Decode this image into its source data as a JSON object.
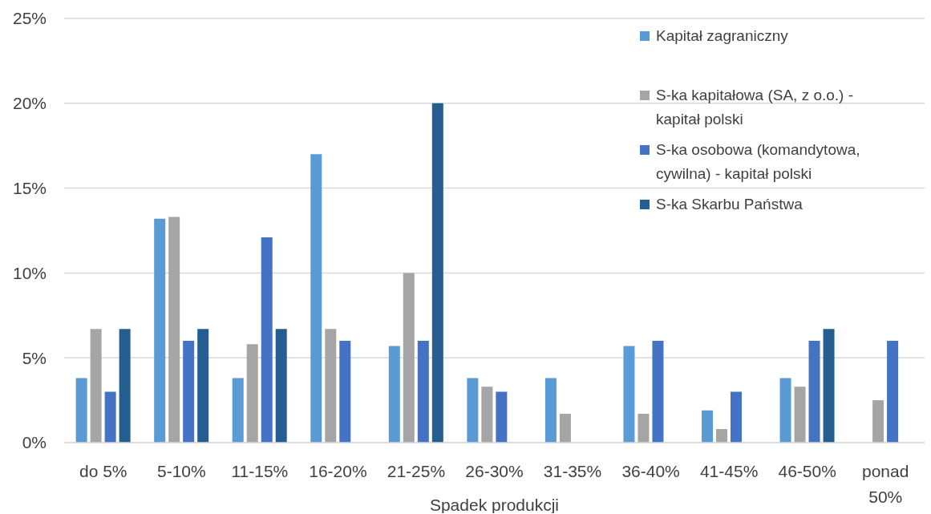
{
  "chart_data": {
    "type": "bar",
    "xlabel": "Spadek produkcji",
    "categories": [
      "do 5%",
      "5-10%",
      "11-15%",
      "16-20%",
      "21-25%",
      "26-30%",
      "31-35%",
      "36-40%",
      "41-45%",
      "46-50%",
      "ponad 50%"
    ],
    "series": [
      {
        "name": "Kapitał zagraniczny",
        "color": "#5b9bd5",
        "values": [
          3.8,
          13.2,
          3.8,
          17.0,
          5.7,
          3.8,
          3.8,
          5.7,
          1.9,
          3.8,
          null
        ]
      },
      {
        "name": "S-ka kapitałowa (SA, z o.o.) - kapitał polski",
        "color": "#a5a5a5",
        "values": [
          6.7,
          13.3,
          5.8,
          6.7,
          10.0,
          3.3,
          1.7,
          1.7,
          0.8,
          3.3,
          2.5
        ]
      },
      {
        "name": "S-ka osobowa (komandytowa, cywilna) - kapitał polski",
        "color": "#4472c4",
        "values": [
          3.0,
          6.0,
          12.1,
          6.0,
          6.0,
          3.0,
          null,
          6.0,
          3.0,
          6.0,
          6.0
        ]
      },
      {
        "name": "S-ka Skarbu Państwa",
        "color": "#255e91",
        "values": [
          6.7,
          6.7,
          6.7,
          null,
          20.0,
          null,
          null,
          null,
          null,
          6.7,
          null
        ]
      }
    ],
    "ylim": [
      0,
      25
    ],
    "yticks": [
      {
        "value": 0,
        "label": "0%"
      },
      {
        "value": 5,
        "label": "5%"
      },
      {
        "value": 10,
        "label": "10%"
      },
      {
        "value": 15,
        "label": "15%"
      },
      {
        "value": 20,
        "label": "20%"
      },
      {
        "value": 25,
        "label": "25%"
      }
    ],
    "grid": "y",
    "legend": "top right"
  }
}
